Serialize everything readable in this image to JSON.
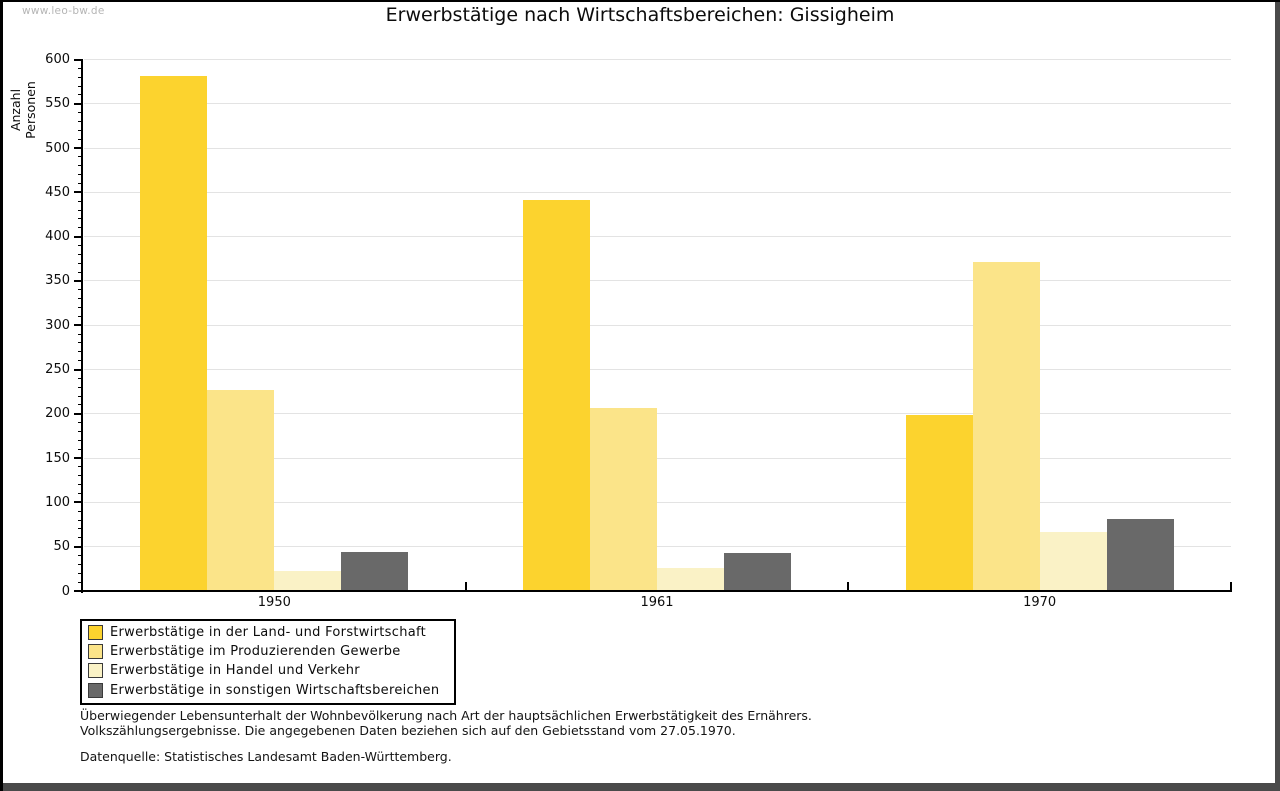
{
  "watermark": "www.leo-bw.de",
  "chart_data": {
    "type": "bar",
    "title": "Erwerbstätige nach Wirtschaftsbereichen: Gissigheim",
    "ylabel": "Anzahl Personen",
    "xlabel": "",
    "categories": [
      "1950",
      "1961",
      "1970"
    ],
    "series": [
      {
        "name": "Erwerbstätige in der Land- und Forstwirtschaft",
        "color": "#fcd32e",
        "values": [
          580,
          440,
          198
        ]
      },
      {
        "name": "Erwerbstätige im Produzierenden Gewerbe",
        "color": "#fbe489",
        "values": [
          226,
          205,
          370
        ]
      },
      {
        "name": "Erwerbstätige in Handel und Verkehr",
        "color": "#faf2c6",
        "values": [
          21,
          25,
          65
        ]
      },
      {
        "name": "Erwerbstätige in sonstigen Wirtschaftsbereichen",
        "color": "#696969",
        "values": [
          43,
          42,
          80
        ]
      }
    ],
    "ylim": [
      0,
      600
    ],
    "ytick_major": 50,
    "ytick_minor": 10,
    "grid": true,
    "legend_position": "bottom-left"
  },
  "footer": {
    "line1": "Überwiegender Lebensunterhalt der Wohnbevölkerung nach Art der hauptsächlichen Erwerbstätigkeit des Ernährers.",
    "line2": "Volkszählungsergebnisse. Die angegebenen Daten beziehen sich auf den Gebietsstand vom 27.05.1970.",
    "source": "Datenquelle: Statistisches Landesamt Baden-Württemberg."
  }
}
